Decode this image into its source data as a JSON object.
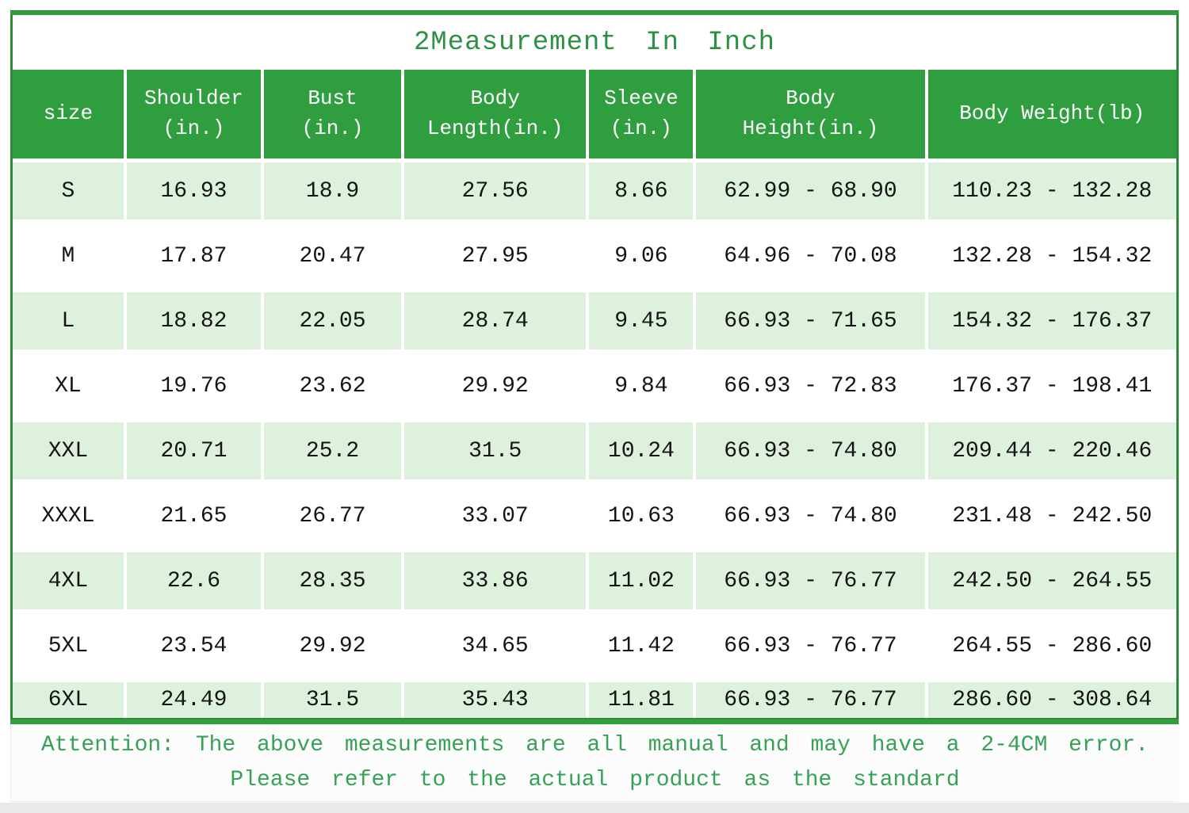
{
  "title": "2Measurement In Inch",
  "colors": {
    "header_green": "#2f9e3e",
    "border_green": "#2b8a37",
    "row_tint_green": "#def1dd",
    "title_green": "#2c9145",
    "note_green": "#36a258",
    "cell_text": "#141414"
  },
  "table": {
    "headers": [
      "size",
      "Shoulder\n(in.)",
      "Bust\n(in.)",
      "Body\nLength(in.)",
      "Sleeve\n(in.)",
      "Body\nHeight(in.)",
      "Body Weight(lb)"
    ],
    "rows": [
      [
        "S",
        "16.93",
        "18.9",
        "27.56",
        "8.66",
        "62.99 - 68.90",
        "110.23 - 132.28"
      ],
      [
        "M",
        "17.87",
        "20.47",
        "27.95",
        "9.06",
        "64.96 - 70.08",
        "132.28 - 154.32"
      ],
      [
        "L",
        "18.82",
        "22.05",
        "28.74",
        "9.45",
        "66.93 - 71.65",
        "154.32 - 176.37"
      ],
      [
        "XL",
        "19.76",
        "23.62",
        "29.92",
        "9.84",
        "66.93 - 72.83",
        "176.37 - 198.41"
      ],
      [
        "XXL",
        "20.71",
        "25.2",
        "31.5",
        "10.24",
        "66.93 - 74.80",
        "209.44 - 220.46"
      ],
      [
        "XXXL",
        "21.65",
        "26.77",
        "33.07",
        "10.63",
        "66.93 - 74.80",
        "231.48 - 242.50"
      ],
      [
        "4XL",
        "22.6",
        "28.35",
        "33.86",
        "11.02",
        "66.93 - 76.77",
        "242.50 - 264.55"
      ],
      [
        "5XL",
        "23.54",
        "29.92",
        "34.65",
        "11.42",
        "66.93 - 76.77",
        "264.55 - 286.60"
      ],
      [
        "6XL",
        "24.49",
        "31.5",
        "35.43",
        "11.81",
        "66.93 - 76.77",
        "286.60 - 308.64"
      ]
    ]
  },
  "note": {
    "line1": "Attention: The above measurements are all manual and may have a 2-4CM error.",
    "line2": "Please refer to the actual product as the standard"
  }
}
